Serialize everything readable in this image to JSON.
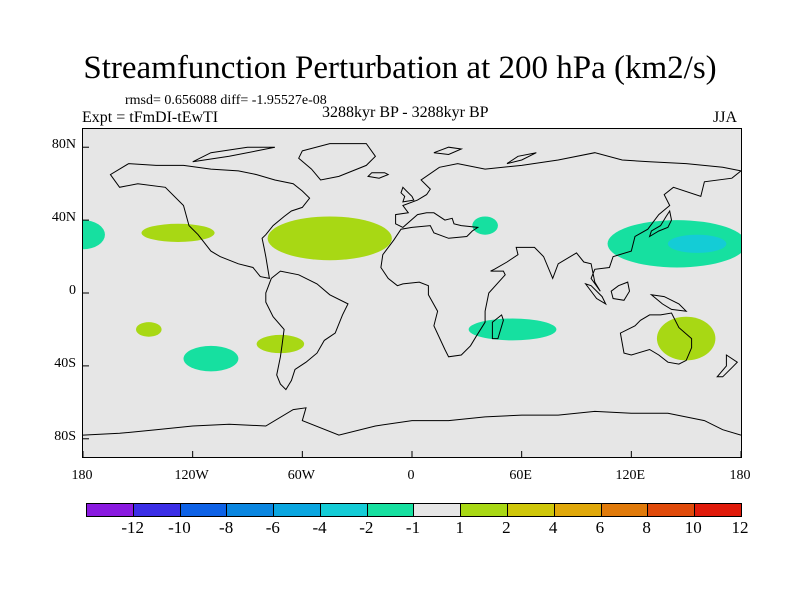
{
  "header": {
    "title": "Streamfunction Perturbation at 200 hPa (km2/s)",
    "stats": "rmsd= 0.656088 diff= -1.95527e-08",
    "experiment": "Expt = tFmDI-tEwTI",
    "period": "3288kyr BP - 3288kyr BP",
    "season": "JJA"
  },
  "map": {
    "y_ticks": [
      "80N",
      "40N",
      "0",
      "40S",
      "80S"
    ],
    "x_ticks": [
      "180",
      "120W",
      "60W",
      "0",
      "60E",
      "120E",
      "180"
    ],
    "lat_values": [
      80,
      40,
      0,
      -40,
      -80
    ],
    "lon_values": [
      -180,
      -120,
      -60,
      0,
      60,
      120,
      180
    ],
    "lon_range": [
      -180,
      180
    ],
    "lat_range": [
      -90,
      90
    ],
    "colors": {
      "ocean_land_bg": "#e6e6e6",
      "coast": "#000000"
    }
  },
  "colorbar": {
    "labels": [
      "-12",
      "-10",
      "-8",
      "-6",
      "-4",
      "-2",
      "-1",
      "1",
      "2",
      "4",
      "6",
      "8",
      "10",
      "12"
    ],
    "colors": [
      "#8a1ae0",
      "#3b2ee6",
      "#0e62e6",
      "#0a86e0",
      "#0aa6e0",
      "#14ccd6",
      "#16e0a0",
      "#e6e6e6",
      "#a8d814",
      "#cfc70a",
      "#e0a80a",
      "#e07a0a",
      "#e04a0a",
      "#e01a0a"
    ]
  },
  "anomalies": [
    {
      "name": "anom-pacific-ne-edge",
      "lon": -180,
      "lat": 32,
      "rlon": 12,
      "rlat": 8,
      "category": "-1"
    },
    {
      "name": "anom-north-america",
      "lon": -128,
      "lat": 33,
      "rlon": 20,
      "rlat": 5,
      "category": "1"
    },
    {
      "name": "anom-north-atlantic",
      "lon": -45,
      "lat": 30,
      "rlon": 34,
      "rlat": 12,
      "category": "1"
    },
    {
      "name": "anom-arabia",
      "lon": 40,
      "lat": 37,
      "rlon": 7,
      "rlat": 5,
      "category": "-1"
    },
    {
      "name": "anom-nw-pacific",
      "lon": 145,
      "lat": 27,
      "rlon": 38,
      "rlat": 13,
      "category": "-1"
    },
    {
      "name": "anom-nw-pacific-core",
      "lon": 156,
      "lat": 27,
      "rlon": 16,
      "rlat": 5,
      "category": "-2"
    },
    {
      "name": "anom-south-pacific-w",
      "lon": -144,
      "lat": -20,
      "rlon": 7,
      "rlat": 4,
      "category": "1"
    },
    {
      "name": "anom-south-pacific",
      "lon": -110,
      "lat": -36,
      "rlon": 15,
      "rlat": 7,
      "category": "-1"
    },
    {
      "name": "anom-s-america",
      "lon": -72,
      "lat": -28,
      "rlon": 13,
      "rlat": 5,
      "category": "1"
    },
    {
      "name": "anom-indian-ocean",
      "lon": 55,
      "lat": -20,
      "rlon": 24,
      "rlat": 6,
      "category": "-1"
    },
    {
      "name": "anom-australia",
      "lon": 150,
      "lat": -25,
      "rlon": 16,
      "rlat": 12,
      "category": "1"
    }
  ],
  "coastlines": [
    {
      "name": "north-america-coast",
      "points": [
        [
          -165,
          65
        ],
        [
          -160,
          58
        ],
        [
          -150,
          60
        ],
        [
          -135,
          58
        ],
        [
          -125,
          48
        ],
        [
          -122,
          37
        ],
        [
          -117,
          32
        ],
        [
          -110,
          23
        ],
        [
          -105,
          20
        ],
        [
          -95,
          16
        ],
        [
          -87,
          14
        ],
        [
          -83,
          9
        ],
        [
          -78,
          8
        ],
        [
          -80,
          20
        ],
        [
          -81,
          25
        ],
        [
          -82,
          30
        ],
        [
          -80,
          32
        ],
        [
          -76,
          37
        ],
        [
          -70,
          42
        ],
        [
          -66,
          45
        ],
        [
          -60,
          47
        ],
        [
          -56,
          52
        ],
        [
          -60,
          56
        ],
        [
          -65,
          60
        ],
        [
          -75,
          62
        ],
        [
          -85,
          65
        ],
        [
          -95,
          67
        ],
        [
          -110,
          68
        ],
        [
          -125,
          70
        ],
        [
          -140,
          70
        ],
        [
          -155,
          71
        ],
        [
          -165,
          65
        ]
      ]
    },
    {
      "name": "greenland-coast",
      "points": [
        [
          -60,
          78
        ],
        [
          -45,
          82
        ],
        [
          -25,
          82
        ],
        [
          -20,
          75
        ],
        [
          -25,
          70
        ],
        [
          -40,
          64
        ],
        [
          -50,
          62
        ],
        [
          -55,
          68
        ],
        [
          -62,
          74
        ],
        [
          -60,
          78
        ]
      ]
    },
    {
      "name": "south-america-coast",
      "points": [
        [
          -77,
          8
        ],
        [
          -72,
          12
        ],
        [
          -62,
          10
        ],
        [
          -52,
          5
        ],
        [
          -45,
          -1
        ],
        [
          -35,
          -6
        ],
        [
          -38,
          -12
        ],
        [
          -42,
          -22
        ],
        [
          -48,
          -26
        ],
        [
          -52,
          -33
        ],
        [
          -58,
          -38
        ],
        [
          -64,
          -42
        ],
        [
          -66,
          -48
        ],
        [
          -69,
          -53
        ],
        [
          -72,
          -50
        ],
        [
          -74,
          -45
        ],
        [
          -72,
          -35
        ],
        [
          -71,
          -28
        ],
        [
          -70,
          -20
        ],
        [
          -76,
          -13
        ],
        [
          -80,
          -5
        ],
        [
          -80,
          0
        ],
        [
          -77,
          8
        ]
      ]
    },
    {
      "name": "eurasia-africa-coast",
      "points": [
        [
          -9,
          38
        ],
        [
          -9,
          43
        ],
        [
          -2,
          44
        ],
        [
          -5,
          48
        ],
        [
          3,
          51
        ],
        [
          8,
          54
        ],
        [
          10,
          57
        ],
        [
          5,
          62
        ],
        [
          15,
          69
        ],
        [
          25,
          71
        ],
        [
          40,
          68
        ],
        [
          60,
          70
        ],
        [
          80,
          73
        ],
        [
          100,
          77
        ],
        [
          115,
          73
        ],
        [
          130,
          72
        ],
        [
          150,
          71
        ],
        [
          170,
          69
        ],
        [
          180,
          67
        ],
        [
          175,
          63
        ],
        [
          160,
          61
        ],
        [
          158,
          53
        ],
        [
          143,
          58
        ],
        [
          138,
          54
        ],
        [
          141,
          48
        ],
        [
          135,
          43
        ],
        [
          129,
          35
        ],
        [
          122,
          31
        ],
        [
          120,
          23
        ],
        [
          110,
          20
        ],
        [
          108,
          14
        ],
        [
          100,
          13
        ],
        [
          98,
          8
        ],
        [
          103,
          1
        ],
        [
          100,
          6
        ],
        [
          98,
          16
        ],
        [
          94,
          17
        ],
        [
          90,
          22
        ],
        [
          80,
          16
        ],
        [
          77,
          8
        ],
        [
          72,
          20
        ],
        [
          67,
          25
        ],
        [
          57,
          25
        ],
        [
          58,
          21
        ],
        [
          52,
          17
        ],
        [
          45,
          13
        ],
        [
          43,
          12
        ],
        [
          50,
          12
        ],
        [
          51,
          10
        ],
        [
          42,
          0
        ],
        [
          40,
          -10
        ],
        [
          40,
          -16
        ],
        [
          35,
          -24
        ],
        [
          32,
          -29
        ],
        [
          27,
          -34
        ],
        [
          20,
          -35
        ],
        [
          18,
          -31
        ],
        [
          12,
          -18
        ],
        [
          14,
          -10
        ],
        [
          9,
          -1
        ],
        [
          9,
          4
        ],
        [
          4,
          6
        ],
        [
          -5,
          5
        ],
        [
          -8,
          4
        ],
        [
          -13,
          8
        ],
        [
          -17,
          14
        ],
        [
          -16,
          21
        ],
        [
          -10,
          29
        ],
        [
          -6,
          35
        ],
        [
          0,
          36
        ],
        [
          10,
          37
        ],
        [
          12,
          33
        ],
        [
          20,
          30
        ],
        [
          30,
          31
        ],
        [
          33,
          34
        ],
        [
          36,
          36
        ],
        [
          27,
          37
        ],
        [
          23,
          38
        ],
        [
          22,
          41
        ],
        [
          18,
          40
        ],
        [
          12,
          44
        ],
        [
          8,
          44
        ],
        [
          3,
          43
        ],
        [
          -5,
          36
        ],
        [
          -9,
          38
        ]
      ]
    },
    {
      "name": "australia-coast",
      "points": [
        [
          114,
          -22
        ],
        [
          116,
          -33
        ],
        [
          120,
          -34
        ],
        [
          130,
          -31
        ],
        [
          135,
          -34
        ],
        [
          140,
          -38
        ],
        [
          146,
          -39
        ],
        [
          150,
          -37
        ],
        [
          153,
          -30
        ],
        [
          153,
          -25
        ],
        [
          146,
          -19
        ],
        [
          142,
          -11
        ],
        [
          136,
          -12
        ],
        [
          130,
          -12
        ],
        [
          125,
          -15
        ],
        [
          122,
          -18
        ],
        [
          114,
          -22
        ]
      ]
    },
    {
      "name": "madagascar-coast",
      "points": [
        [
          44,
          -25
        ],
        [
          47,
          -25
        ],
        [
          50,
          -15
        ],
        [
          49,
          -12
        ],
        [
          44,
          -16
        ],
        [
          44,
          -25
        ]
      ]
    },
    {
      "name": "antarctica-coast",
      "points": [
        [
          -180,
          -78
        ],
        [
          -160,
          -77
        ],
        [
          -140,
          -75
        ],
        [
          -120,
          -73
        ],
        [
          -100,
          -72
        ],
        [
          -80,
          -73
        ],
        [
          -65,
          -64
        ],
        [
          -58,
          -63
        ],
        [
          -60,
          -70
        ],
        [
          -40,
          -78
        ],
        [
          -20,
          -73
        ],
        [
          0,
          -70
        ],
        [
          20,
          -70
        ],
        [
          40,
          -68
        ],
        [
          60,
          -67
        ],
        [
          80,
          -67
        ],
        [
          100,
          -65
        ],
        [
          120,
          -66
        ],
        [
          140,
          -66
        ],
        [
          160,
          -70
        ],
        [
          170,
          -75
        ],
        [
          180,
          -78
        ]
      ],
      "open": true
    },
    {
      "name": "uk-coast",
      "points": [
        [
          -5,
          50
        ],
        [
          1,
          51
        ],
        [
          0,
          53
        ],
        [
          -3,
          56
        ],
        [
          -5,
          58
        ],
        [
          -6,
          55
        ],
        [
          -4,
          53
        ],
        [
          -5,
          50
        ]
      ]
    },
    {
      "name": "japan-coast",
      "points": [
        [
          130,
          31
        ],
        [
          135,
          34
        ],
        [
          140,
          36
        ],
        [
          142,
          40
        ],
        [
          141,
          45
        ],
        [
          139,
          42
        ],
        [
          136,
          37
        ],
        [
          131,
          34
        ],
        [
          130,
          31
        ]
      ]
    },
    {
      "name": "borneo-coast",
      "points": [
        [
          109,
          1
        ],
        [
          113,
          4
        ],
        [
          118,
          6
        ],
        [
          119,
          1
        ],
        [
          116,
          -4
        ],
        [
          110,
          -3
        ],
        [
          109,
          1
        ]
      ]
    },
    {
      "name": "sumatra-coast",
      "points": [
        [
          95,
          5
        ],
        [
          98,
          4
        ],
        [
          104,
          -2
        ],
        [
          106,
          -6
        ],
        [
          101,
          -3
        ],
        [
          95,
          5
        ]
      ]
    },
    {
      "name": "new-guinea-coast",
      "points": [
        [
          131,
          -1
        ],
        [
          138,
          -2
        ],
        [
          146,
          -6
        ],
        [
          150,
          -10
        ],
        [
          142,
          -9
        ],
        [
          137,
          -6
        ],
        [
          131,
          -1
        ]
      ]
    },
    {
      "name": "new-zealand-coast",
      "points": [
        [
          172,
          -34
        ],
        [
          178,
          -38
        ],
        [
          175,
          -41
        ],
        [
          170,
          -46
        ],
        [
          167,
          -46
        ],
        [
          172,
          -40
        ],
        [
          172,
          -34
        ]
      ]
    },
    {
      "name": "iceland-coast",
      "points": [
        [
          -24,
          64
        ],
        [
          -22,
          66
        ],
        [
          -15,
          66
        ],
        [
          -13,
          65
        ],
        [
          -18,
          63
        ],
        [
          -24,
          64
        ]
      ]
    },
    {
      "name": "arctic-islands-coast",
      "points": [
        [
          -120,
          72
        ],
        [
          -100,
          75
        ],
        [
          -85,
          78
        ],
        [
          -75,
          80
        ],
        [
          -90,
          80
        ],
        [
          -110,
          77
        ],
        [
          -120,
          72
        ]
      ]
    },
    {
      "name": "svalbard-coast",
      "points": [
        [
          12,
          77
        ],
        [
          20,
          80
        ],
        [
          27,
          79
        ],
        [
          20,
          76
        ],
        [
          12,
          77
        ]
      ]
    },
    {
      "name": "novaya-zemlya-coast",
      "points": [
        [
          52,
          71
        ],
        [
          58,
          75
        ],
        [
          68,
          77
        ],
        [
          60,
          73
        ],
        [
          52,
          71
        ]
      ]
    }
  ]
}
